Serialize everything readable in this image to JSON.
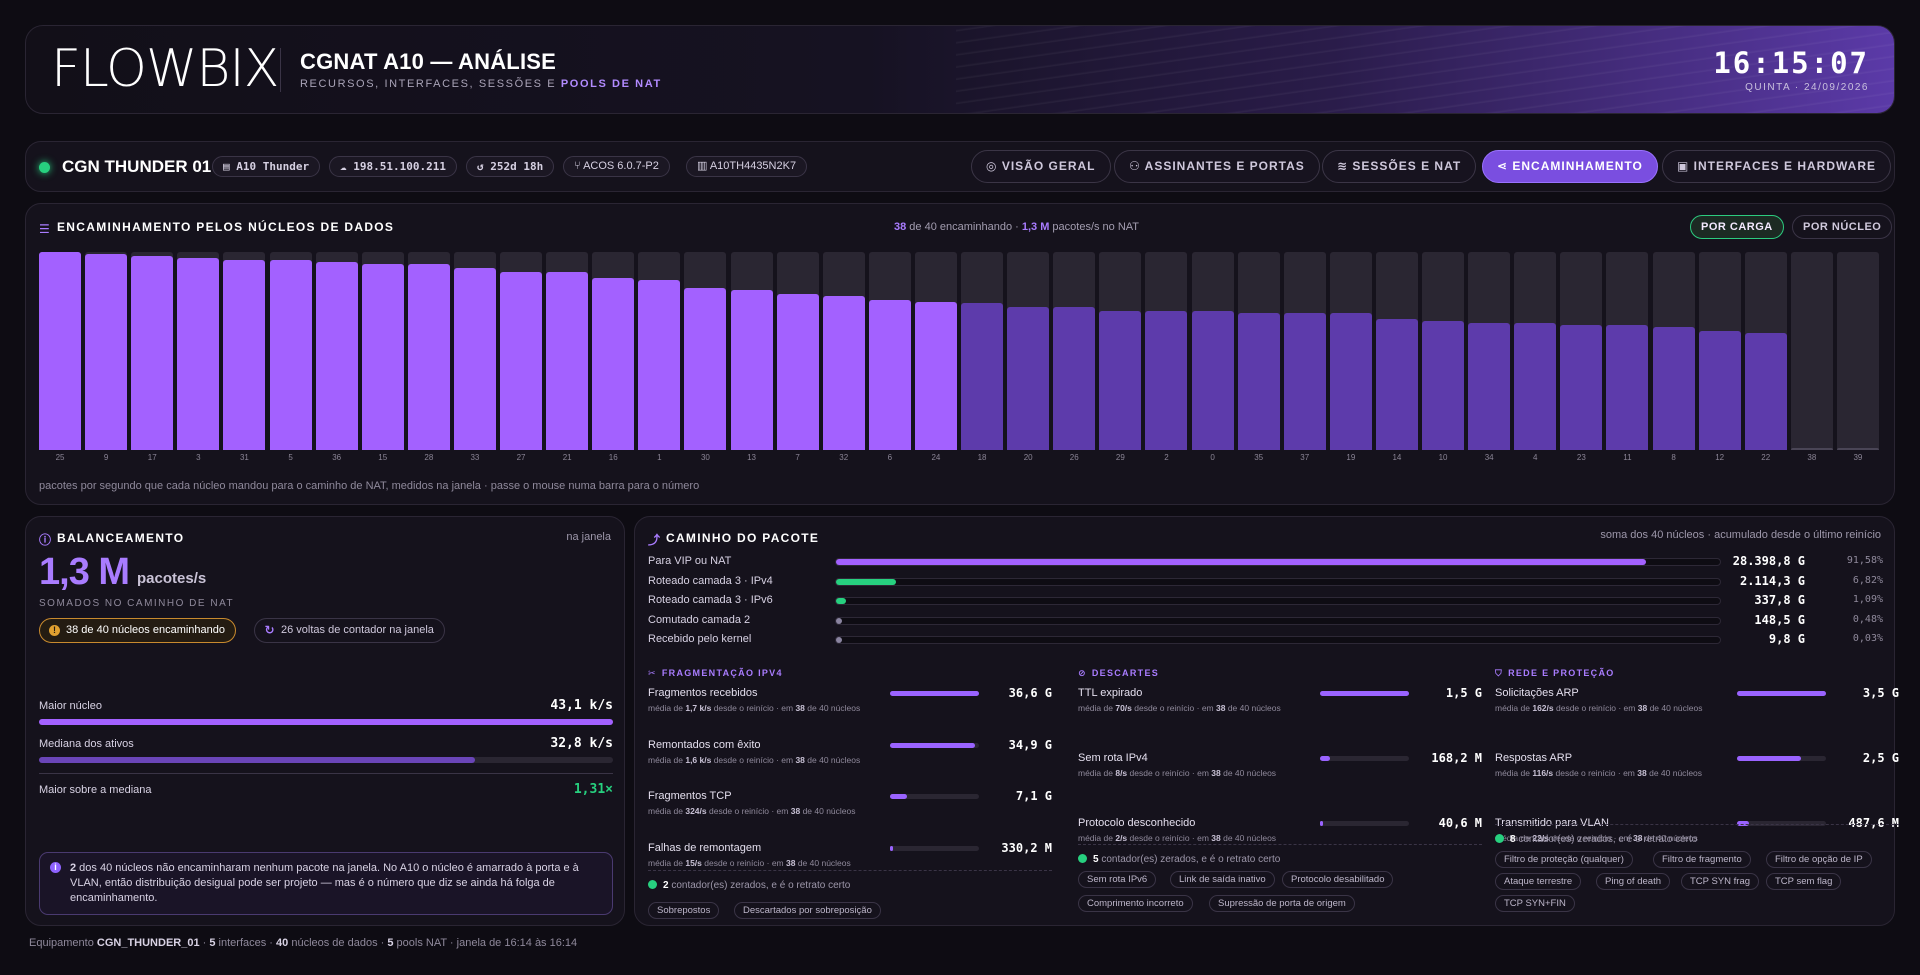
{
  "header": {
    "logo": "FLOWBIX",
    "title": "CGNAT A10 — ANÁLISE",
    "subtitle_prefix": "RECURSOS, INTERFACES, SESSÕES E ",
    "subtitle_highlight": "POOLS DE NAT",
    "clock": "16:15:07",
    "date": "QUINTA · 24/09/2026"
  },
  "device": {
    "status_color": "#27d07f",
    "name": "CGN THUNDER 01",
    "chips": [
      {
        "icon": "server-icon",
        "text": "A10 Thunder"
      },
      {
        "icon": "cloud-icon",
        "text": "198.51.100.211"
      },
      {
        "icon": "uptime-icon",
        "text": "252d 18h"
      },
      {
        "icon": "branch-icon",
        "text": "ACOS 6.0.7-P2"
      },
      {
        "icon": "barcode-icon",
        "text": "A10TH4435N2K7"
      }
    ],
    "tabs": [
      {
        "icon": "gauge-icon",
        "label": "VISÃO GERAL",
        "active": false
      },
      {
        "icon": "users-icon",
        "label": "ASSINANTES E PORTAS",
        "active": false
      },
      {
        "icon": "layers-icon",
        "label": "SESSÕES E NAT",
        "active": false
      },
      {
        "icon": "share-icon",
        "label": "ENCAMINHAMENTO",
        "active": true
      },
      {
        "icon": "chip-icon",
        "label": "INTERFACES E HARDWARE",
        "active": false
      }
    ]
  },
  "forwarding": {
    "title": "ENCAMINHAMENTO PELOS NÚCLEOS DE DADOS",
    "summary_count": "38",
    "summary_mid": " de 40 encaminhando · ",
    "summary_rate": "1,3 M",
    "summary_end": " pacotes/s no NAT",
    "toggle_load": "POR CARGA",
    "toggle_core": "POR NÚCLEO",
    "note": "pacotes por segundo que cada núcleo mandou para o caminho de NAT, medidos na janela · passe o mouse numa barra para o número",
    "colors": {
      "bright": "#a361ff",
      "dim": "#5d3bab",
      "track": "#2a2632"
    }
  },
  "chart_data": {
    "type": "bar",
    "title": "ENCAMINHAMENTO PELOS NÚCLEOS DE DADOS",
    "categories": [
      "25",
      "9",
      "17",
      "3",
      "31",
      "5",
      "36",
      "15",
      "28",
      "33",
      "27",
      "21",
      "16",
      "1",
      "30",
      "13",
      "7",
      "32",
      "6",
      "24",
      "18",
      "20",
      "26",
      "29",
      "2",
      "0",
      "35",
      "37",
      "19",
      "14",
      "10",
      "34",
      "4",
      "23",
      "11",
      "8",
      "12",
      "22",
      "38",
      "39"
    ],
    "values": [
      100,
      99,
      98,
      97,
      96,
      96,
      95,
      94,
      94,
      92,
      90,
      90,
      87,
      86,
      82,
      81,
      79,
      78,
      76,
      75,
      74,
      72,
      72,
      70,
      70,
      70,
      69,
      69,
      69,
      66,
      65,
      64,
      64,
      63,
      63,
      62,
      60,
      59,
      1,
      1
    ],
    "ylim": [
      0,
      100
    ],
    "xlabel": "",
    "ylabel": "",
    "grid": false
  },
  "balance": {
    "title": "BALANCEAMENTO",
    "window": "na janela",
    "value": "1,3 M",
    "unit": "pacotes/s",
    "sub": "SOMADOS NO CAMINHO DE NAT",
    "pill_warn": "38 de 40 núcleos encaminhando",
    "pill_counter": "26 voltas de contador na janela",
    "metrics": [
      {
        "label": "Maior núcleo",
        "value": "43,1 k/s",
        "fill": 1.0,
        "color": "#a361ff"
      },
      {
        "label": "Mediana dos ativos",
        "value": "32,8 k/s",
        "fill": 0.76,
        "color": "#6a45b8"
      }
    ],
    "ratio_label": "Maior sobre a mediana",
    "ratio_value": "1,31×",
    "ratio_color": "#27d07f",
    "info_count": "2",
    "info_text": " dos 40 núcleos não encaminharam nenhum pacote na janela. No A10 o núcleo é amarrado à porta e à VLAN, então distribuição desigual pode ser projeto — mas é o número que diz se ainda há folga de encaminhamento."
  },
  "packet_path": {
    "title": "CAMINHO DO PACOTE",
    "note": "soma dos 40 núcleos · acumulado desde o último reinício",
    "rows": [
      {
        "label": "Para VIP ou NAT",
        "value": "28.398,8 G",
        "pct": "91,58%",
        "fill": 0.9158,
        "color": "#a361ff"
      },
      {
        "label": "Roteado camada 3 · IPv4",
        "value": "2.114,3 G",
        "pct": "6,82%",
        "fill": 0.0682,
        "color": "#27d07f"
      },
      {
        "label": "Roteado camada 3 · IPv6",
        "value": "337,8 G",
        "pct": "1,09%",
        "fill": 0.0109,
        "color": "#27d07f"
      },
      {
        "label": "Comutado camada 2",
        "value": "148,5 G",
        "pct": "0,48%",
        "fill": 0.0048,
        "color": "#8a84a0"
      },
      {
        "label": "Recebido pelo kernel",
        "value": "9,8 G",
        "pct": "0,03%",
        "fill": 0.0003,
        "color": "#8a84a0"
      }
    ],
    "sections": [
      {
        "title": "FRAGMENTAÇÃO IPV4",
        "icon": "scissors-icon",
        "items": [
          {
            "label": "Fragmentos recebidos",
            "value": "36,6 G",
            "rate": "1,7 k/s",
            "fill": 1.0
          },
          {
            "label": "Remontados com êxito",
            "value": "34,9 G",
            "rate": "1,6 k/s",
            "fill": 0.95
          },
          {
            "label": "Fragmentos TCP",
            "value": "7,1 G",
            "rate": "324/s",
            "fill": 0.19
          },
          {
            "label": "Falhas de remontagem",
            "value": "330,2 M",
            "rate": "15/s",
            "fill": 0.02
          }
        ],
        "ok_count": "2",
        "ok_text": "contador(es) zerados, e é o retrato certo",
        "tags": [
          "Sobrepostos",
          "Descartados por sobreposição"
        ]
      },
      {
        "title": "DESCARTES",
        "icon": "ban-icon",
        "items": [
          {
            "label": "TTL expirado",
            "value": "1,5 G",
            "rate": "70/s",
            "fill": 1.0
          },
          {
            "label": "Sem rota IPv4",
            "value": "168,2 M",
            "rate": "8/s",
            "fill": 0.11
          },
          {
            "label": "Protocolo desconhecido",
            "value": "40,6 M",
            "rate": "2/s",
            "fill": 0.03
          }
        ],
        "ok_count": "5",
        "ok_text": "contador(es) zerados, e é o retrato certo",
        "tags": [
          "Sem rota IPv6",
          "Link de saída inativo",
          "Protocolo desabilitado",
          "Comprimento incorreto",
          "Supressão de porta de origem"
        ]
      },
      {
        "title": "REDE E PROTEÇÃO",
        "icon": "shield-icon",
        "items": [
          {
            "label": "Solicitações ARP",
            "value": "3,5 G",
            "rate": "162/s",
            "fill": 1.0
          },
          {
            "label": "Respostas ARP",
            "value": "2,5 G",
            "rate": "116/s",
            "fill": 0.72
          },
          {
            "label": "Transmitido para VLAN",
            "value": "487,6 M",
            "rate": "22/s",
            "fill": 0.14
          }
        ],
        "ok_count": "8",
        "ok_text": "contador(es) zerados, e é o retrato certo",
        "tags": [
          "Filtro de proteção (qualquer)",
          "Filtro de fragmento",
          "Filtro de opção de IP",
          "Ataque terrestre",
          "Ping of death",
          "TCP SYN frag",
          "TCP sem flag",
          "TCP SYN+FIN"
        ]
      }
    ],
    "rate_prefix": "média de ",
    "rate_suffix": " desde o reinício · em ",
    "rate_cores": "38",
    "rate_end": " de 40 núcleos"
  },
  "footer": {
    "prefix": "Equipamento ",
    "device": "CGN_THUNDER_01",
    "t1": " · ",
    "interfaces": "5",
    "t2": " interfaces · ",
    "cores": "40",
    "t3": " núcleos de dados · ",
    "pools": "5",
    "t4": " pools NAT · janela de 16:14 às 16:14"
  }
}
